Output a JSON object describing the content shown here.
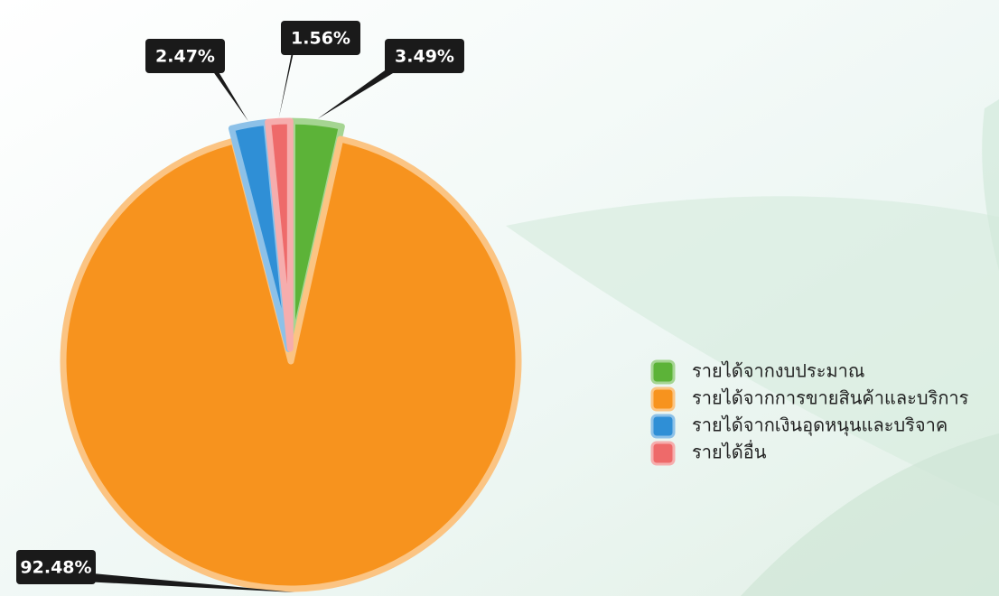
{
  "chart_data": {
    "type": "pie",
    "categories": [
      "รายได้จากงบประมาณ",
      "รายได้จากการขายสินค้าและบริการ",
      "รายได้จากเงินอุดหนุนและบริจาค",
      "รายได้อื่น"
    ],
    "values": [
      3.49,
      92.48,
      2.47,
      1.56
    ],
    "value_labels": [
      "3.49%",
      "92.48%",
      "2.47%",
      "1.56%"
    ],
    "colors": [
      "#5cb338",
      "#f7931e",
      "#2f8fd6",
      "#ee6a6a"
    ]
  }
}
